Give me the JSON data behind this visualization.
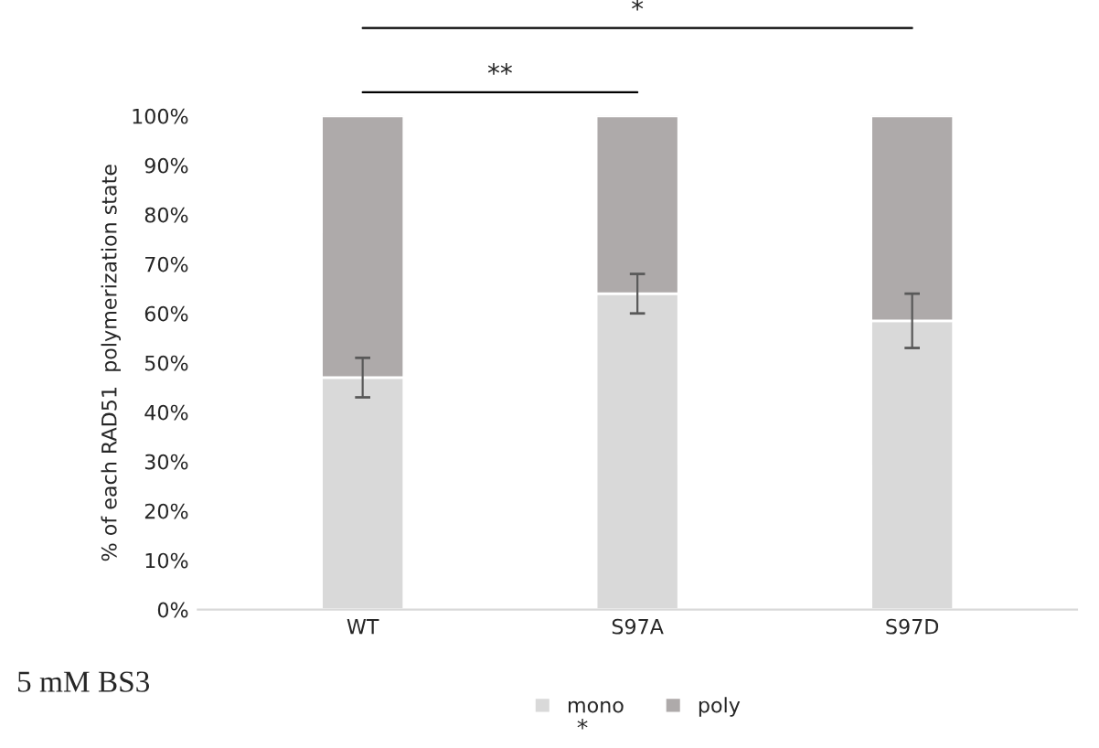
{
  "chart_data": {
    "type": "bar",
    "stacked": true,
    "ylabel": "% of each RAD51  polymerization state",
    "categories": [
      "WT",
      "S97A",
      "S97D"
    ],
    "series": [
      {
        "name": "mono",
        "color": "#d9d9d9",
        "values": [
          47,
          64,
          58.5
        ],
        "errors": [
          4,
          4,
          5.5
        ]
      },
      {
        "name": "poly",
        "color": "#aeaaaa",
        "values": [
          53,
          36,
          41.5
        ]
      }
    ],
    "ylim": [
      0,
      100
    ],
    "yticks": [
      {
        "value": 0,
        "label": "0%"
      },
      {
        "value": 10,
        "label": "10%"
      },
      {
        "value": 20,
        "label": "20%"
      },
      {
        "value": 30,
        "label": "30%"
      },
      {
        "value": 40,
        "label": "40%"
      },
      {
        "value": 50,
        "label": "50%"
      },
      {
        "value": 60,
        "label": "60%"
      },
      {
        "value": 70,
        "label": "70%"
      },
      {
        "value": 80,
        "label": "80%"
      },
      {
        "value": 90,
        "label": "90%"
      },
      {
        "value": 100,
        "label": "100%"
      }
    ],
    "grid": false,
    "legend": "bottom",
    "annotations": [
      "**",
      "*",
      "5 mM BS3",
      "*"
    ]
  }
}
